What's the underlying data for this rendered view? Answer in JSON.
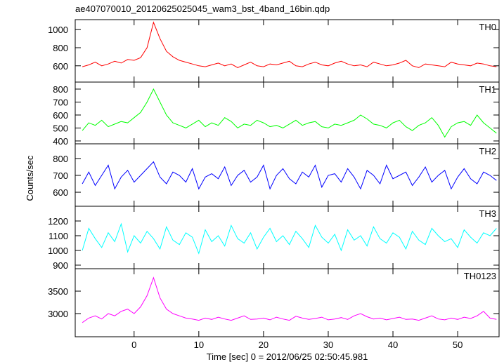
{
  "chart_data": [
    {
      "type": "line",
      "title": "ae407070010_20120625025045_wam3_bst_4band_16bin.qdp",
      "x": [
        -8,
        -7,
        -6,
        -5,
        -4,
        -3,
        -2,
        -1,
        0,
        1,
        2,
        3,
        4,
        5,
        6,
        7,
        8,
        9,
        10,
        11,
        12,
        13,
        14,
        15,
        16,
        17,
        18,
        19,
        20,
        21,
        22,
        23,
        24,
        25,
        26,
        27,
        28,
        29,
        30,
        31,
        32,
        33,
        34,
        35,
        36,
        37,
        38,
        39,
        40,
        41,
        42,
        43,
        44,
        45,
        46,
        47,
        48,
        49,
        50,
        51,
        52,
        53,
        54,
        55,
        56
      ],
      "series": [
        {
          "name": "TH0",
          "color": "#ff0000",
          "values": [
            590,
            610,
            640,
            600,
            620,
            650,
            630,
            670,
            660,
            690,
            800,
            1080,
            900,
            760,
            700,
            660,
            640,
            620,
            600,
            590,
            610,
            630,
            600,
            620,
            580,
            610,
            640,
            600,
            590,
            620,
            610,
            630,
            650,
            600,
            590,
            620,
            640,
            610,
            600,
            630,
            650,
            620,
            600,
            610,
            590,
            640,
            620,
            600,
            610,
            630,
            660,
            600,
            580,
            620,
            610,
            600,
            590,
            640,
            620,
            610,
            600,
            630,
            620,
            600,
            590
          ]
        }
      ],
      "xlim": [
        -9.1,
        56.4
      ],
      "ylim": [
        420,
        1110
      ],
      "yticks": [
        600,
        800,
        1000
      ]
    },
    {
      "type": "line",
      "x": [
        -8,
        -7,
        -6,
        -5,
        -4,
        -3,
        -2,
        -1,
        0,
        1,
        2,
        3,
        4,
        5,
        6,
        7,
        8,
        9,
        10,
        11,
        12,
        13,
        14,
        15,
        16,
        17,
        18,
        19,
        20,
        21,
        22,
        23,
        24,
        25,
        26,
        27,
        28,
        29,
        30,
        31,
        32,
        33,
        34,
        35,
        36,
        37,
        38,
        39,
        40,
        41,
        42,
        43,
        44,
        45,
        46,
        47,
        48,
        49,
        50,
        51,
        52,
        53,
        54,
        55,
        56
      ],
      "series": [
        {
          "name": "TH1",
          "color": "#00ff00",
          "values": [
            480,
            540,
            520,
            560,
            510,
            530,
            550,
            540,
            580,
            620,
            700,
            800,
            700,
            600,
            540,
            520,
            500,
            530,
            560,
            510,
            540,
            520,
            580,
            550,
            500,
            530,
            520,
            560,
            540,
            510,
            520,
            500,
            530,
            560,
            520,
            540,
            550,
            510,
            500,
            530,
            520,
            540,
            560,
            600,
            570,
            530,
            520,
            500,
            540,
            560,
            510,
            480,
            520,
            540,
            580,
            520,
            430,
            510,
            540,
            550,
            520,
            600,
            540,
            500,
            460
          ]
        }
      ],
      "xlim": [
        -9.1,
        56.4
      ],
      "ylim": [
        378,
        854
      ],
      "yticks": [
        400,
        500,
        600,
        700,
        800
      ]
    },
    {
      "type": "line",
      "ylabel": "Counts/sec",
      "x": [
        -8,
        -7,
        -6,
        -5,
        -4,
        -3,
        -2,
        -1,
        0,
        1,
        2,
        3,
        4,
        5,
        6,
        7,
        8,
        9,
        10,
        11,
        12,
        13,
        14,
        15,
        16,
        17,
        18,
        19,
        20,
        21,
        22,
        23,
        24,
        25,
        26,
        27,
        28,
        29,
        30,
        31,
        32,
        33,
        34,
        35,
        36,
        37,
        38,
        39,
        40,
        41,
        42,
        43,
        44,
        45,
        46,
        47,
        48,
        49,
        50,
        51,
        52,
        53,
        54,
        55,
        56
      ],
      "series": [
        {
          "name": "TH2",
          "color": "#0000ff",
          "values": [
            650,
            720,
            640,
            700,
            760,
            620,
            690,
            730,
            660,
            700,
            740,
            780,
            690,
            650,
            720,
            700,
            660,
            740,
            620,
            690,
            710,
            680,
            750,
            640,
            700,
            730,
            660,
            690,
            760,
            620,
            700,
            740,
            680,
            650,
            720,
            690,
            760,
            630,
            700,
            710,
            660,
            740,
            690,
            620,
            730,
            700,
            650,
            760,
            680,
            700,
            720,
            640,
            690,
            750,
            660,
            700,
            730,
            620,
            690,
            740,
            680,
            650,
            720,
            700,
            670
          ]
        }
      ],
      "xlim": [
        -9.1,
        56.4
      ],
      "ylim": [
        517,
        887
      ],
      "yticks": [
        600,
        700,
        800
      ]
    },
    {
      "type": "line",
      "x": [
        -8,
        -7,
        -6,
        -5,
        -4,
        -3,
        -2,
        -1,
        0,
        1,
        2,
        3,
        4,
        5,
        6,
        7,
        8,
        9,
        10,
        11,
        12,
        13,
        14,
        15,
        16,
        17,
        18,
        19,
        20,
        21,
        22,
        23,
        24,
        25,
        26,
        27,
        28,
        29,
        30,
        31,
        32,
        33,
        34,
        35,
        36,
        37,
        38,
        39,
        40,
        41,
        42,
        43,
        44,
        45,
        46,
        47,
        48,
        49,
        50,
        51,
        52,
        53,
        54,
        55,
        56
      ],
      "series": [
        {
          "name": "TH3",
          "color": "#00ffff",
          "values": [
            1000,
            1150,
            1080,
            1020,
            1120,
            1060,
            1180,
            990,
            1100,
            1050,
            1130,
            1080,
            1010,
            1160,
            1070,
            1040,
            1120,
            1090,
            980,
            1140,
            1060,
            1100,
            1030,
            1170,
            1080,
            1050,
            1120,
            1010,
            1090,
            1150,
            1060,
            1100,
            1040,
            1130,
            1080,
            1020,
            1170,
            1090,
            1050,
            1110,
            1000,
            1140,
            1070,
            1100,
            1030,
            1160,
            1080,
            1050,
            1120,
            1090,
            1010,
            1130,
            1070,
            1040,
            1150,
            1100,
            1060,
            1080,
            1020,
            1140,
            1090,
            1050,
            1120,
            1100,
            1150
          ]
        }
      ],
      "xlim": [
        -9.1,
        56.4
      ],
      "ylim": [
        876,
        1300
      ],
      "yticks": [
        900,
        1000,
        1100,
        1200
      ]
    },
    {
      "type": "line",
      "xlabel": "Time [sec] 0 = 2012/06/25 02:50:45.981",
      "x": [
        -8,
        -7,
        -6,
        -5,
        -4,
        -3,
        -2,
        -1,
        0,
        1,
        2,
        3,
        4,
        5,
        6,
        7,
        8,
        9,
        10,
        11,
        12,
        13,
        14,
        15,
        16,
        17,
        18,
        19,
        20,
        21,
        22,
        23,
        24,
        25,
        26,
        27,
        28,
        29,
        30,
        31,
        32,
        33,
        34,
        35,
        36,
        37,
        38,
        39,
        40,
        41,
        42,
        43,
        44,
        45,
        46,
        47,
        48,
        49,
        50,
        51,
        52,
        53,
        54,
        55,
        56
      ],
      "series": [
        {
          "name": "TH0123",
          "color": "#ff00ff",
          "values": [
            2800,
            2900,
            2950,
            2880,
            3000,
            2950,
            3050,
            3100,
            3000,
            3150,
            3400,
            3800,
            3350,
            3100,
            3000,
            2950,
            2900,
            2880,
            2850,
            2900,
            2870,
            2920,
            2880,
            2850,
            2900,
            2950,
            2870,
            2880,
            2900,
            2860,
            2920,
            2880,
            2850,
            2940,
            2900,
            2870,
            2890,
            2920,
            2860,
            2880,
            2910,
            2870,
            2950,
            3000,
            2930,
            2880,
            2900,
            2860,
            2890,
            2920,
            2870,
            2880,
            2850,
            2900,
            2950,
            2880,
            2860,
            2900,
            2870,
            2920,
            2890,
            2950,
            3050,
            2900,
            2870
          ]
        }
      ],
      "xlim": [
        -9.1,
        56.4
      ],
      "ylim": [
        2484,
        4000
      ],
      "yticks": [
        3000,
        3500
      ],
      "xticks": [
        0,
        10,
        20,
        30,
        40,
        50
      ]
    }
  ]
}
